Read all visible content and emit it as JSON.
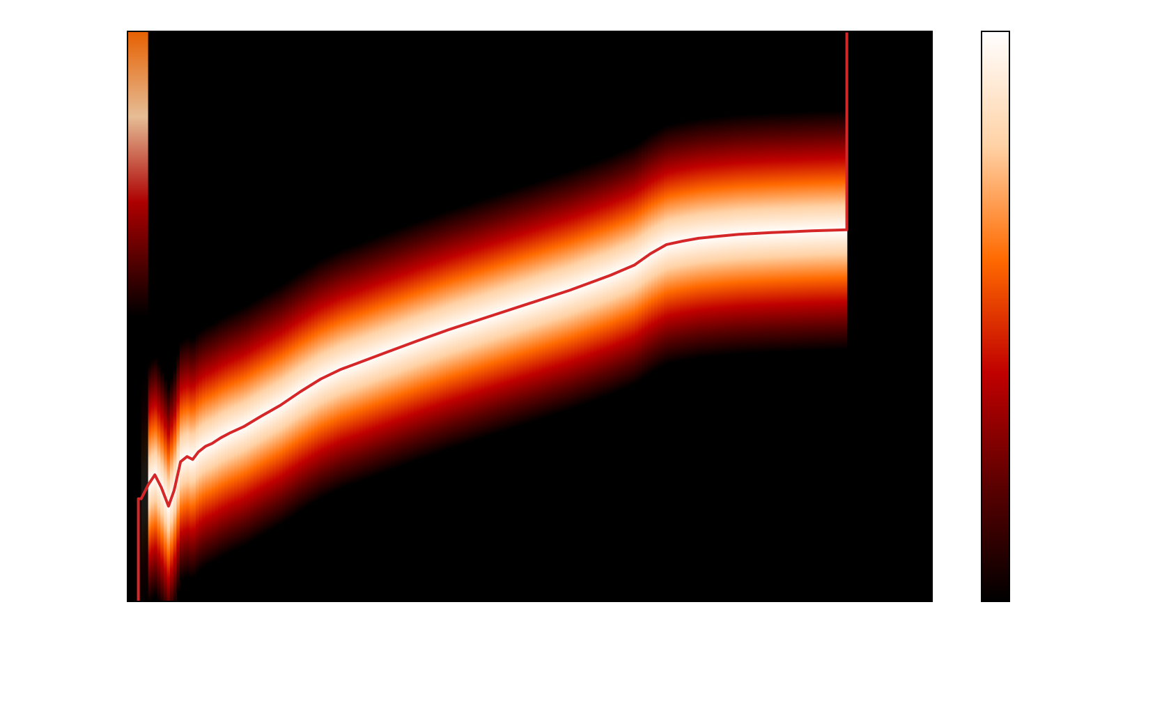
{
  "chart_data": {
    "type": "heatmap",
    "title": "",
    "xlabel": "",
    "ylabel": "",
    "colormap": "gist_heat",
    "colormap_stops": [
      "#000000",
      "#5a0000",
      "#c00000",
      "#ff6a00",
      "#ffd2a6",
      "#ffffff"
    ],
    "line_color": "#d62728",
    "xlim": [
      0,
      1
    ],
    "ylim": [
      0,
      1
    ],
    "x_ticks": [],
    "y_ticks": [],
    "colorbar_ticks": [],
    "series": [
      {
        "values_x": [
          0.0135,
          0.0135,
          0.017,
          0.026,
          0.034,
          0.042,
          0.051,
          0.058,
          0.066,
          0.074,
          0.081,
          0.088,
          0.097,
          0.105,
          0.116,
          0.128,
          0.145,
          0.165,
          0.19,
          0.215,
          0.24,
          0.265,
          0.29,
          0.32,
          0.36,
          0.4,
          0.45,
          0.5,
          0.55,
          0.6,
          0.63,
          0.65,
          0.67,
          0.69,
          0.71,
          0.73,
          0.76,
          0.8,
          0.85,
          0.894,
          0.894,
          0.894
        ],
        "values_y": [
          0.0,
          0.18,
          0.18,
          0.205,
          0.222,
          0.2,
          0.167,
          0.195,
          0.245,
          0.254,
          0.249,
          0.262,
          0.272,
          0.277,
          0.287,
          0.296,
          0.307,
          0.324,
          0.344,
          0.368,
          0.39,
          0.407,
          0.42,
          0.436,
          0.457,
          0.477,
          0.5,
          0.523,
          0.546,
          0.572,
          0.59,
          0.61,
          0.626,
          0.632,
          0.637,
          0.64,
          0.644,
          0.647,
          0.65,
          0.652,
          0.66,
          0.998
        ]
      }
    ],
    "data_extent_x": [
      0.0,
      0.894
    ],
    "band_width_y": 0.42
  }
}
